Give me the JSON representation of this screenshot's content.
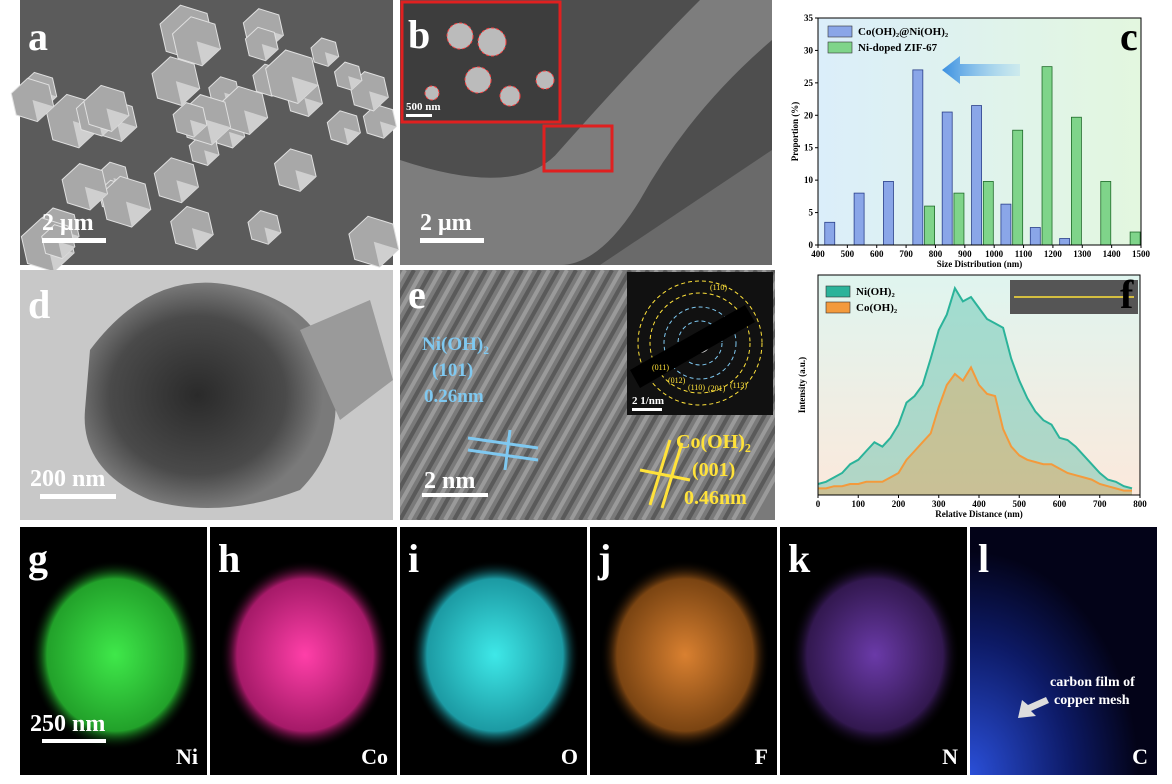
{
  "panels": [
    {
      "letter": "a",
      "scale_bar": "2 μm"
    },
    {
      "letter": "b",
      "scale_bar": "2 μm",
      "inset_scale_bar": "500 nm"
    },
    {
      "letter": "c"
    },
    {
      "letter": "d",
      "scale_bar": "200 nm"
    },
    {
      "letter": "e",
      "scale_bar": "2 nm",
      "inset_scale_bar": "2 1/nm",
      "annotations": [
        "Ni(OH)₂",
        "(101)",
        "0.26nm",
        "Co(OH)₂",
        "(001)",
        "0.46nm"
      ],
      "rings": [
        "(110)",
        "(011)",
        "(012)",
        "(110)",
        "(201)",
        "(113)"
      ]
    },
    {
      "letter": "f"
    },
    {
      "letter": "g",
      "scale_bar": "250 nm",
      "element": "Ni"
    },
    {
      "letter": "h",
      "element": "Co"
    },
    {
      "letter": "i",
      "element": "O"
    },
    {
      "letter": "j",
      "element": "F"
    },
    {
      "letter": "k",
      "element": "N"
    },
    {
      "letter": "l",
      "element": "C",
      "annotation": [
        "carbon film of",
        "copper mesh"
      ]
    }
  ],
  "chart_data": [
    {
      "type": "bar",
      "xlabel": "Size Distribution (nm)",
      "ylabel": "Proportion (%)",
      "xlim": [
        400,
        1500
      ],
      "xticks": [
        400,
        500,
        600,
        700,
        800,
        900,
        1000,
        1100,
        1200,
        1300,
        1400,
        1500
      ],
      "ylim": [
        0,
        35
      ],
      "yticks": [
        0,
        5,
        10,
        15,
        20,
        25,
        30,
        35
      ],
      "series": [
        {
          "name": "Co(OH)₂@Ni(OH)₂",
          "color": "#8aa6e8",
          "x": [
            440,
            540,
            640,
            740,
            840,
            940,
            1040,
            1140,
            1240
          ],
          "values": [
            3.5,
            8,
            9.8,
            27,
            20.5,
            21.5,
            6.3,
            2.7,
            1
          ]
        },
        {
          "name": "Ni-doped ZIF-67",
          "color": "#7fd48a",
          "x": [
            780,
            880,
            980,
            1080,
            1180,
            1280,
            1380,
            1480
          ],
          "values": [
            6,
            8,
            9.8,
            17.7,
            27.5,
            19.7,
            9.8,
            2
          ]
        }
      ]
    },
    {
      "type": "line",
      "xlabel": "Relative Distance (nm)",
      "ylabel": "Intensity (a.u.)",
      "xlim": [
        0,
        800
      ],
      "xticks": [
        0,
        100,
        200,
        300,
        400,
        500,
        600,
        700,
        800
      ],
      "ylim": [
        0,
        100
      ],
      "x": [
        0,
        20,
        40,
        60,
        80,
        100,
        120,
        140,
        160,
        180,
        200,
        220,
        240,
        260,
        280,
        300,
        320,
        340,
        360,
        380,
        400,
        420,
        440,
        460,
        480,
        500,
        520,
        540,
        560,
        580,
        600,
        620,
        640,
        660,
        680,
        700,
        720,
        740,
        760,
        780
      ],
      "series": [
        {
          "name": "Ni(OH)₂",
          "color": "#2bb39a",
          "values": [
            5,
            6,
            8,
            10,
            14,
            16,
            20,
            24,
            22,
            26,
            32,
            42,
            45,
            50,
            62,
            75,
            82,
            94,
            88,
            90,
            85,
            80,
            78,
            76,
            62,
            52,
            44,
            38,
            34,
            32,
            26,
            25,
            22,
            18,
            14,
            10,
            7,
            6,
            4,
            3
          ]
        },
        {
          "name": "Co(OH)₂",
          "color": "#f39a3c",
          "values": [
            3,
            3,
            4,
            4,
            5,
            5,
            6,
            6,
            6,
            8,
            10,
            16,
            20,
            24,
            28,
            40,
            50,
            55,
            52,
            58,
            50,
            46,
            45,
            30,
            22,
            18,
            16,
            15,
            14,
            14,
            12,
            10,
            9,
            8,
            7,
            5,
            4,
            3,
            2,
            2
          ]
        }
      ]
    }
  ]
}
